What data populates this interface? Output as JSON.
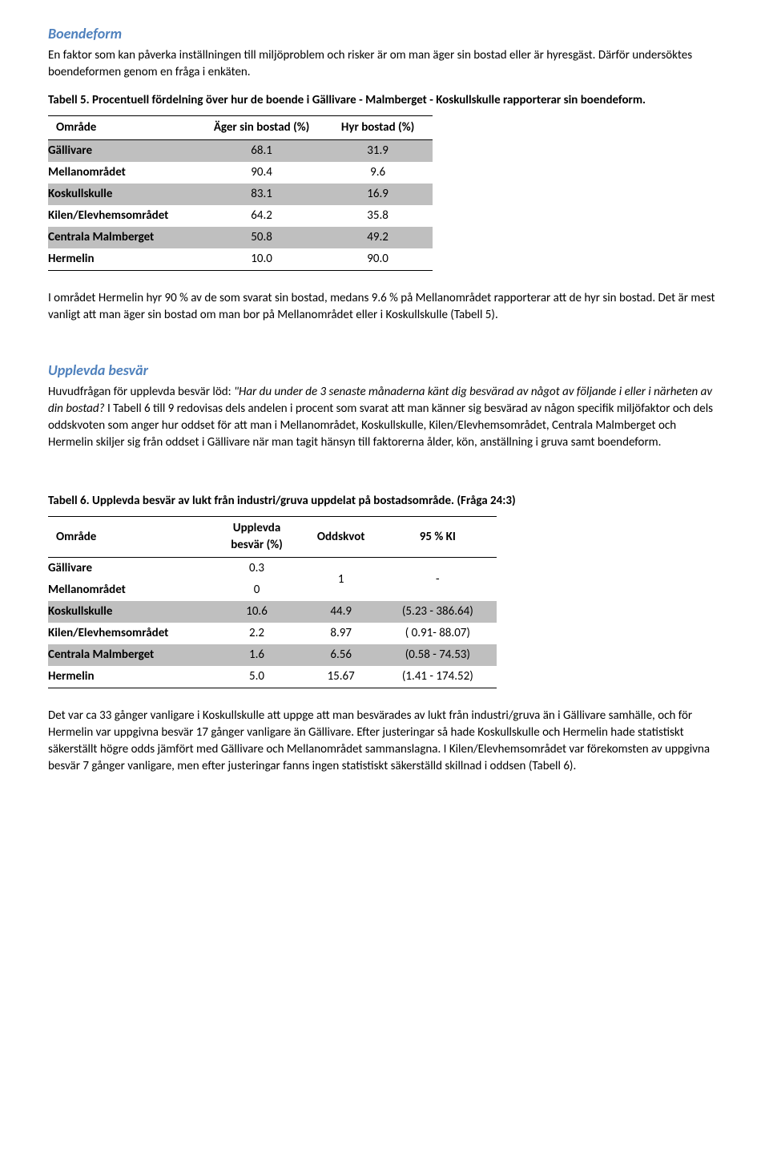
{
  "section1": {
    "heading": "Boendeform",
    "para": "En faktor som kan påverka inställningen till miljöproblem och risker är om man äger sin bostad eller är hyresgäst. Därför undersöktes boendeformen genom en fråga i enkäten."
  },
  "table5": {
    "caption": "Tabell 5. Procentuell fördelning över hur de boende i Gällivare - Malmberget - Koskullskulle rapporterar sin boendeform.",
    "columns": [
      "Område",
      "Äger sin bostad (%)",
      "Hyr bostad (%)"
    ],
    "rows": [
      {
        "cells": [
          "Gällivare",
          "68.1",
          "31.9"
        ],
        "shaded": true
      },
      {
        "cells": [
          "Mellanområdet",
          "90.4",
          "9.6"
        ],
        "shaded": false
      },
      {
        "cells": [
          "Koskullskulle",
          "83.1",
          "16.9"
        ],
        "shaded": true
      },
      {
        "cells": [
          "Kilen/Elevhemsområdet",
          "64.2",
          "35.8"
        ],
        "shaded": false
      },
      {
        "cells": [
          "Centrala Malmberget",
          "50.8",
          "49.2"
        ],
        "shaded": true
      },
      {
        "cells": [
          "Hermelin",
          "10.0",
          "90.0"
        ],
        "shaded": false
      }
    ],
    "style": {
      "shaded_bg": "#bfbfbf",
      "border_color": "#000000",
      "col_align": [
        "left",
        "center",
        "center"
      ]
    }
  },
  "after_t5": "I området Hermelin hyr 90 % av de som svarat sin bostad, medans 9.6 % på Mellanområdet rapporterar att de hyr sin bostad. Det är mest vanligt att man äger sin bostad om man bor på Mellanområdet eller i Koskullskulle (Tabell 5).",
  "section2": {
    "heading": "Upplevda besvär",
    "para_pre": "Huvudfrågan för upplevda besvär löd: ",
    "para_italic": "\"Har du under de 3 senaste månaderna känt dig besvärad av något av följande i eller i närheten av din bostad?",
    "para_post": " I Tabell 6 till 9 redovisas dels andelen i procent som svarat att man känner sig besvärad av någon specifik miljöfaktor och dels oddskvoten som anger hur oddset för att man i Mellanområdet, Koskullskulle, Kilen/Elevhemsområdet, Centrala Malmberget och Hermelin skiljer sig från oddset i Gällivare när man tagit hänsyn till faktorerna ålder, kön, anställning i gruva samt boendeform."
  },
  "table6": {
    "caption": "Tabell 6. Upplevda besvär av lukt från industri/gruva uppdelat på bostadsområde. (Fråga 24:3)",
    "columns": [
      "Område",
      "Upplevda besvär (%)",
      "Oddskvot",
      "95 % KI"
    ],
    "rows": [
      {
        "cells": [
          "Gällivare",
          "0.3",
          "1",
          "-"
        ],
        "shaded": false,
        "merge_group": 1
      },
      {
        "cells": [
          "Mellanområdet",
          "0",
          "",
          ""
        ],
        "shaded": false,
        "merge_group": 1
      },
      {
        "cells": [
          "Koskullskulle",
          "10.6",
          "44.9",
          "(5.23 - 386.64)"
        ],
        "shaded": true
      },
      {
        "cells": [
          "Kilen/Elevhemsområdet",
          "2.2",
          "8.97",
          "( 0.91- 88.07)"
        ],
        "shaded": false
      },
      {
        "cells": [
          "Centrala Malmberget",
          "1.6",
          "6.56",
          "(0.58 - 74.53)"
        ],
        "shaded": true
      },
      {
        "cells": [
          "Hermelin",
          "5.0",
          "15.67",
          "(1.41 - 174.52)"
        ],
        "shaded": false
      }
    ],
    "style": {
      "shaded_bg": "#bfbfbf",
      "border_color": "#000000",
      "col_align": [
        "left",
        "center",
        "center",
        "center"
      ],
      "header_line2": {
        "col1": "Upplevda",
        "col1b": "besvär (%)"
      }
    }
  },
  "after_t6": "Det var ca 33 gånger vanligare i Koskullskulle att uppge att man besvärades av lukt från industri/gruva än i Gällivare samhälle, och för Hermelin var uppgivna besvär 17 gånger vanligare än Gällivare. Efter justeringar så hade Koskullskulle och Hermelin hade statistiskt säkerställt högre odds jämfört med Gällivare och Mellanområdet sammanslagna. I Kilen/Elevhemsområdet var förekomsten av uppgivna besvär 7 gånger vanligare, men efter justeringar fanns ingen statistiskt säkerställd skillnad i oddsen (Tabell 6)."
}
